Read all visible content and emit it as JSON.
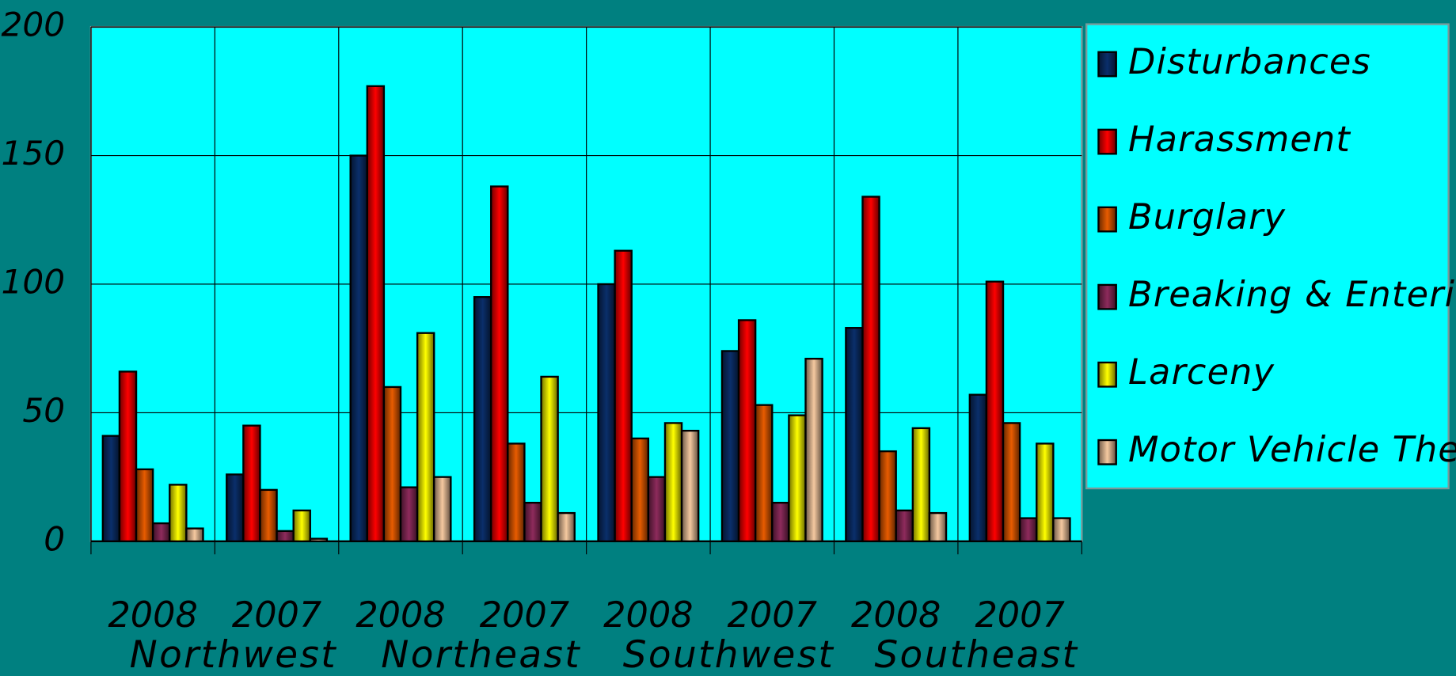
{
  "chart_data": {
    "type": "bar",
    "categories": [
      "2008",
      "2007",
      "2008",
      "2007",
      "2008",
      "2007",
      "2008",
      "2007"
    ],
    "groups": [
      "Northwest",
      "Northeast",
      "Southwest",
      "Southeast"
    ],
    "series": [
      {
        "name": "Disturbances",
        "color": "#0a2f6b",
        "values": [
          41,
          26,
          150,
          95,
          100,
          74,
          83,
          57
        ]
      },
      {
        "name": "Harassment",
        "color": "#ff0000",
        "values": [
          66,
          45,
          177,
          138,
          113,
          86,
          134,
          101
        ]
      },
      {
        "name": "Burglary",
        "color": "#e85c00",
        "values": [
          28,
          20,
          60,
          38,
          40,
          53,
          35,
          46
        ]
      },
      {
        "name": "Breaking & Entering",
        "color": "#8e2b5c",
        "values": [
          7,
          4,
          21,
          15,
          25,
          15,
          12,
          9
        ]
      },
      {
        "name": "Larceny",
        "color": "#ffff00",
        "values": [
          22,
          12,
          81,
          64,
          46,
          49,
          44,
          38
        ]
      },
      {
        "name": "Motor Vehicle Theft",
        "color": "#f5c9a0",
        "values": [
          5,
          1,
          25,
          11,
          43,
          71,
          11,
          9
        ]
      }
    ],
    "ylim": [
      0,
      200
    ],
    "yticks": [
      0,
      50,
      100,
      150,
      200
    ],
    "grid": true,
    "legend": "right"
  }
}
